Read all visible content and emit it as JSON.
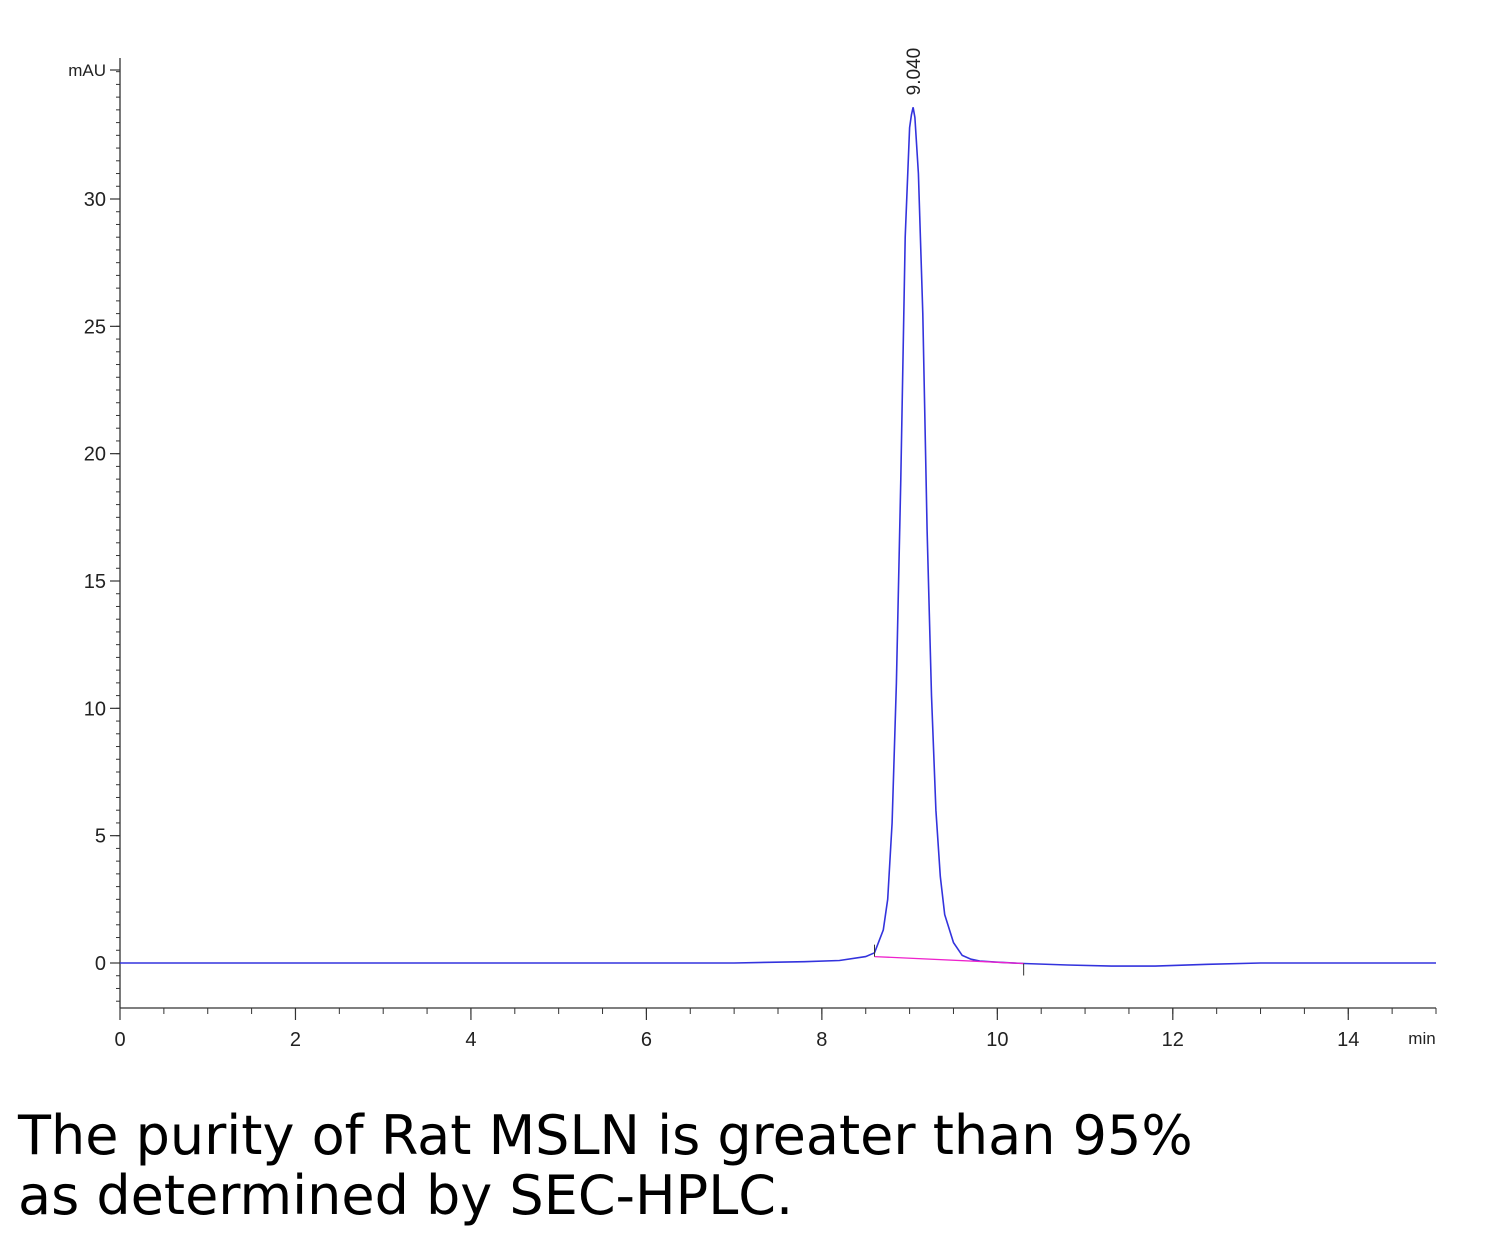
{
  "chart_data": {
    "type": "line",
    "y_unit": "mAU",
    "x_unit": "min",
    "xlim": [
      0,
      15
    ],
    "ylim": [
      -1.8,
      35.7
    ],
    "x_ticks": [
      0,
      2,
      4,
      6,
      8,
      10,
      12,
      14
    ],
    "y_ticks": [
      0,
      5,
      10,
      15,
      20,
      25,
      30
    ],
    "x_minor_step": 0.5,
    "y_minor_step": 0.5,
    "grid": false,
    "series": [
      {
        "color": "#3333dd",
        "x": [
          0,
          7.0,
          7.8,
          8.2,
          8.5,
          8.6,
          8.7,
          8.75,
          8.8,
          8.85,
          8.9,
          8.95,
          9.0,
          9.02,
          9.04,
          9.06,
          9.1,
          9.15,
          9.2,
          9.25,
          9.3,
          9.35,
          9.4,
          9.5,
          9.6,
          9.7,
          9.8,
          10.0,
          10.3,
          10.8,
          11.3,
          11.8,
          12.4,
          13.0,
          15.0
        ],
        "y": [
          0,
          0,
          0.05,
          0.1,
          0.25,
          0.4,
          1.3,
          2.5,
          5.5,
          11.0,
          19.0,
          28.5,
          32.8,
          33.3,
          33.6,
          33.2,
          31.0,
          25.5,
          17.0,
          10.5,
          6.0,
          3.4,
          1.9,
          0.8,
          0.3,
          0.15,
          0.08,
          0.03,
          -0.02,
          -0.08,
          -0.12,
          -0.12,
          -0.05,
          0,
          0
        ]
      },
      {
        "color": "#ee22cc",
        "x": [
          8.6,
          10.3
        ],
        "y": [
          0.25,
          -0.02
        ]
      }
    ],
    "annotations": [
      {
        "text": "9.040",
        "x": 9.04,
        "y": 33.6
      }
    ]
  },
  "caption": {
    "line1": "The purity of Rat MSLN is greater than 95%",
    "line2": "as determined by SEC-HPLC."
  }
}
